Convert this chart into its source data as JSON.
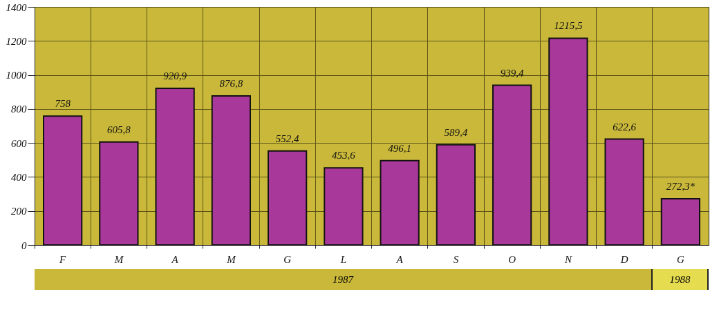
{
  "chart_data": {
    "type": "bar",
    "categories": [
      "F",
      "M",
      "A",
      "M",
      "G",
      "L",
      "A",
      "S",
      "O",
      "N",
      "D",
      "G"
    ],
    "values": [
      758,
      605.8,
      920.9,
      876.8,
      552.4,
      453.6,
      496.1,
      589.4,
      939.4,
      1215.5,
      622.6,
      272.3
    ],
    "value_labels": [
      "758",
      "605,8",
      "920,9",
      "876,8",
      "552,4",
      "453,6",
      "496,1",
      "589,4",
      "939,4",
      "1215,5",
      "622,6",
      "272,3*"
    ],
    "color": "#a8389a",
    "ylim": [
      0,
      1400
    ],
    "yticks": [
      0,
      200,
      400,
      600,
      800,
      1000,
      1200,
      1400
    ],
    "grid": true,
    "annotations": [
      "1987",
      "1988"
    ]
  }
}
